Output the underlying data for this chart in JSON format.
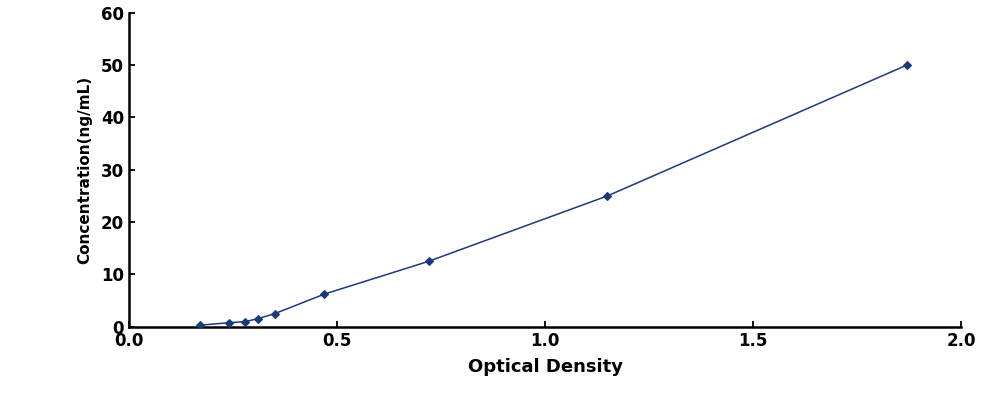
{
  "x": [
    0.17,
    0.24,
    0.28,
    0.31,
    0.35,
    0.47,
    0.72,
    1.15,
    1.87
  ],
  "y": [
    0.3,
    0.78,
    1.0,
    1.56,
    2.5,
    6.25,
    12.5,
    25.0,
    50.0
  ],
  "line_color": "#1a3a7a",
  "marker": "D",
  "marker_size": 4.5,
  "marker_facecolor": "#1a3a7a",
  "xlabel": "Optical Density",
  "ylabel": "Concentration(ng/mL)",
  "xlim": [
    0,
    2.0
  ],
  "ylim": [
    0,
    60
  ],
  "xticks": [
    0,
    0.5,
    1.0,
    1.5,
    2.0
  ],
  "yticks": [
    0,
    10,
    20,
    30,
    40,
    50,
    60
  ],
  "xlabel_fontsize": 13,
  "ylabel_fontsize": 11,
  "tick_fontsize": 12,
  "line_width": 1.1,
  "background_color": "#ffffff"
}
